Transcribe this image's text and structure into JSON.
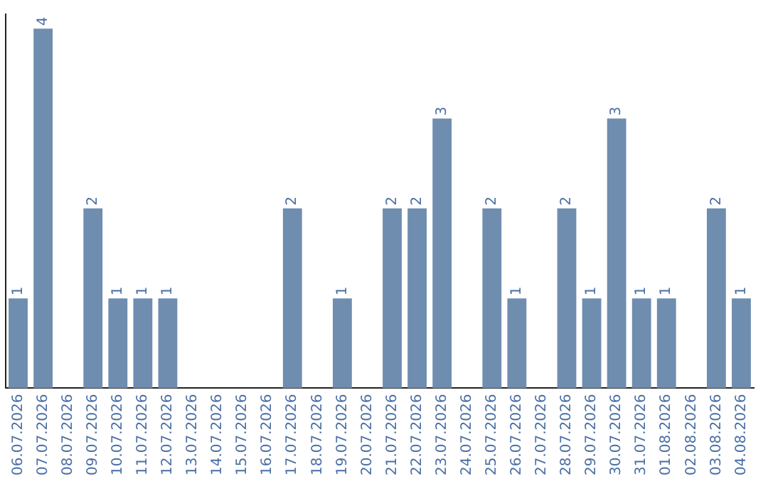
{
  "chart_data": {
    "type": "bar",
    "categories": [
      "06.07.2026",
      "07.07.2026",
      "08.07.2026",
      "09.07.2026",
      "10.07.2026",
      "11.07.2026",
      "12.07.2026",
      "13.07.2026",
      "14.07.2026",
      "15.07.2026",
      "16.07.2026",
      "17.07.2026",
      "18.07.2026",
      "19.07.2026",
      "20.07.2026",
      "21.07.2026",
      "22.07.2026",
      "23.07.2026",
      "24.07.2026",
      "25.07.2026",
      "26.07.2026",
      "27.07.2026",
      "28.07.2026",
      "29.07.2026",
      "30.07.2026",
      "31.07.2026",
      "01.08.2026",
      "02.08.2026",
      "03.08.2026",
      "04.08.2026"
    ],
    "values": [
      1,
      4,
      0,
      2,
      1,
      1,
      1,
      0,
      0,
      0,
      0,
      2,
      0,
      1,
      0,
      2,
      2,
      3,
      0,
      2,
      1,
      0,
      2,
      1,
      3,
      1,
      1,
      0,
      2,
      1
    ],
    "value_labels": [
      "1",
      "4",
      null,
      "2",
      "1",
      "1",
      "1",
      null,
      null,
      null,
      null,
      "2",
      null,
      "1",
      null,
      "2",
      "2",
      "3",
      null,
      "2",
      "1",
      null,
      "2",
      "1",
      "3",
      "1",
      "1",
      null,
      "2",
      "1"
    ],
    "color": "#6f8daf",
    "ylim": [
      0,
      4.16
    ],
    "tick_labels": "x",
    "grid": false,
    "legend": false
  }
}
